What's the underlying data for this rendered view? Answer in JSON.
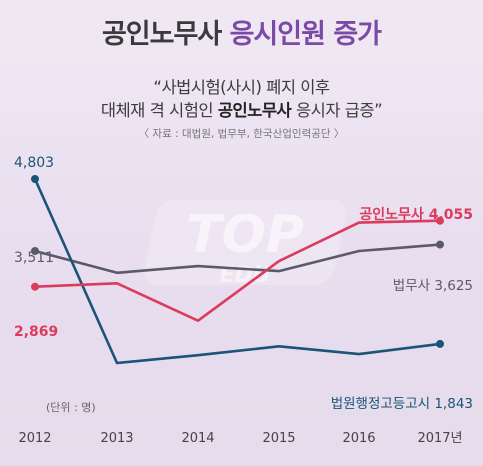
{
  "header": {
    "title_part1": "공인노무사",
    "title_part2": "응시인원 증가",
    "quote_line1": "“사법시험(사시) 폐지 이후",
    "quote_line2_a": "대체재 격 시험인 ",
    "quote_line2_b": "공인노무사",
    "quote_line2_c": " 응시자 급증”",
    "source": "〈 자료 : 대법원, 법무부, 한국산업인력공단 〉"
  },
  "watermark": {
    "text_main": "TOP",
    "text_sub": "EDU"
  },
  "colors": {
    "blue": "#1a5478",
    "red": "#dd3b5e",
    "gray": "#5b5a6c",
    "title_accent": "#7a4aa6"
  },
  "chart_data": {
    "type": "line",
    "x": [
      "2012",
      "2013",
      "2014",
      "2015",
      "2016",
      "2017년"
    ],
    "unit_note": "(단위 : 명)",
    "series": [
      {
        "name": "공인노무사",
        "values": [
          2869,
          2930,
          2260,
          3330,
          4020,
          4055
        ],
        "color": "#dd3b5e",
        "start_label": "2,869",
        "end_label": "4,055"
      },
      {
        "name": "법무사",
        "values": [
          3511,
          3120,
          3240,
          3150,
          3510,
          3625
        ],
        "color": "#5b5a6c",
        "start_label": "3,511",
        "end_label": "3,625"
      },
      {
        "name": "법원행정고등고시",
        "values": [
          4803,
          1500,
          1640,
          1800,
          1660,
          1843
        ],
        "color": "#1a5478",
        "start_label": "4,803",
        "end_label": "1,843"
      }
    ],
    "ylim": [
      1000,
      5000
    ],
    "grid": false
  }
}
